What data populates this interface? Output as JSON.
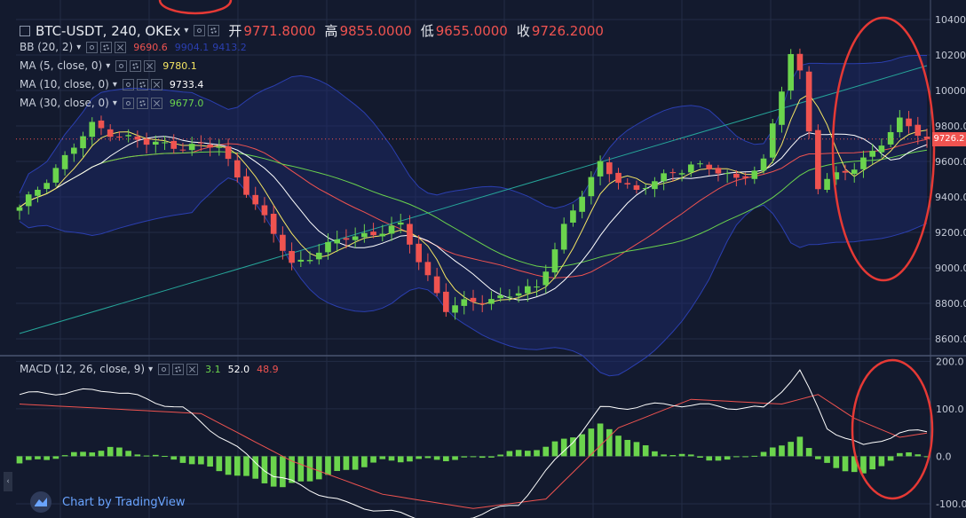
{
  "header": {
    "symbol": "BTC-USDT, 240, OKEx",
    "open_label": "开",
    "open_value": "9771.8000",
    "high_label": "高",
    "high_value": "9855.0000",
    "low_label": "低",
    "low_value": "9655.0000",
    "close_label": "收",
    "close_value": "9726.2000"
  },
  "indicators": [
    {
      "label": "BB (20, 2)",
      "values": [
        "9690.6",
        "9904.1",
        "9413.2"
      ],
      "colors": [
        "#ef5350",
        "#2b3fb0",
        "#2b3fb0"
      ]
    },
    {
      "label": "MA (5, close, 0)",
      "values": [
        "9780.1"
      ],
      "colors": [
        "#f5e663"
      ]
    },
    {
      "label": "MA (10, close, 0)",
      "values": [
        "9733.4"
      ],
      "colors": [
        "#ffffff"
      ]
    },
    {
      "label": "MA (30, close, 0)",
      "values": [
        "9677.0"
      ],
      "colors": [
        "#6bd44d"
      ]
    }
  ],
  "macd_legend": {
    "label": "MACD (12, 26, close, 9)",
    "values": [
      "3.1",
      "52.0",
      "48.9"
    ],
    "colors": [
      "#6bd44d",
      "#ffffff",
      "#ef5350"
    ]
  },
  "price_tag": "9726.2",
  "attribution": "Chart by TradingView",
  "colors": {
    "bg": "#131a2e",
    "up": "#6bd44d",
    "down": "#ef5350",
    "bb_fill": "#1c2a6e",
    "trend": "#26a69a",
    "annotation": "#e53935"
  },
  "chart_data": [
    {
      "type": "candlestick",
      "title": "BTC-USDT, 240, OKEx",
      "y_ticks": [
        "10400.0",
        "10200.0",
        "10000.0",
        "9800.0",
        "9600.0",
        "9400.0",
        "9200.0",
        "9000.0",
        "8800.0",
        "8600.0"
      ],
      "ylim": [
        8510,
        10440
      ],
      "grid": true,
      "bars": 100,
      "last_close": 9726.2,
      "key_prices": [
        {
          "bar": 0,
          "price": 9330
        },
        {
          "bar": 8,
          "price": 9800
        },
        {
          "bar": 14,
          "price": 9700
        },
        {
          "bar": 22,
          "price": 9680
        },
        {
          "bar": 25,
          "price": 9440
        },
        {
          "bar": 30,
          "price": 9020
        },
        {
          "bar": 36,
          "price": 9170
        },
        {
          "bar": 42,
          "price": 9230
        },
        {
          "bar": 47,
          "price": 8770
        },
        {
          "bar": 53,
          "price": 8840
        },
        {
          "bar": 57,
          "price": 8880
        },
        {
          "bar": 60,
          "price": 9240
        },
        {
          "bar": 64,
          "price": 9580
        },
        {
          "bar": 68,
          "price": 9430
        },
        {
          "bar": 74,
          "price": 9590
        },
        {
          "bar": 79,
          "price": 9500
        },
        {
          "bar": 82,
          "price": 9600
        },
        {
          "bar": 85,
          "price": 10200
        },
        {
          "bar": 86,
          "price": 10100
        },
        {
          "bar": 88,
          "price": 9470
        },
        {
          "bar": 92,
          "price": 9560
        },
        {
          "bar": 97,
          "price": 9820
        },
        {
          "bar": 100,
          "price": 9726
        }
      ],
      "series": [
        {
          "name": "BB (20, 2)"
        },
        {
          "name": "MA (5, close, 0)"
        },
        {
          "name": "MA (10, close, 0)"
        },
        {
          "name": "MA (30, close, 0)"
        }
      ],
      "trendline": {
        "from": {
          "bar": 0,
          "price": 8630
        },
        "to": {
          "bar": 100,
          "price": 10140
        }
      }
    },
    {
      "type": "bar",
      "title": "MACD (12, 26, close, 9)",
      "y_ticks": [
        "200.0",
        "100.0",
        "0.0",
        "-100.0"
      ],
      "ylim": [
        -130,
        210
      ],
      "key_histogram": [
        {
          "bar": 0,
          "value": -15
        },
        {
          "bar": 10,
          "value": 18
        },
        {
          "bar": 18,
          "value": -10
        },
        {
          "bar": 29,
          "value": -65
        },
        {
          "bar": 40,
          "value": -10
        },
        {
          "bar": 50,
          "value": -5
        },
        {
          "bar": 58,
          "value": 20
        },
        {
          "bar": 64,
          "value": 65
        },
        {
          "bar": 70,
          "value": 10
        },
        {
          "bar": 78,
          "value": -10
        },
        {
          "bar": 84,
          "value": 20
        },
        {
          "bar": 86,
          "value": 45
        },
        {
          "bar": 88,
          "value": -10
        },
        {
          "bar": 93,
          "value": -40
        },
        {
          "bar": 97,
          "value": 5
        },
        {
          "bar": 100,
          "value": 3
        }
      ],
      "key_macd": [
        {
          "bar": 0,
          "value": 130
        },
        {
          "bar": 10,
          "value": 140
        },
        {
          "bar": 18,
          "value": 100
        },
        {
          "bar": 28,
          "value": -40
        },
        {
          "bar": 36,
          "value": -100
        },
        {
          "bar": 47,
          "value": -140
        },
        {
          "bar": 55,
          "value": -100
        },
        {
          "bar": 64,
          "value": 100
        },
        {
          "bar": 72,
          "value": 110
        },
        {
          "bar": 82,
          "value": 100
        },
        {
          "bar": 86,
          "value": 180
        },
        {
          "bar": 89,
          "value": 60
        },
        {
          "bar": 93,
          "value": 20
        },
        {
          "bar": 97,
          "value": 50
        },
        {
          "bar": 100,
          "value": 52
        }
      ],
      "key_signal": [
        {
          "bar": 0,
          "value": 110
        },
        {
          "bar": 10,
          "value": 100
        },
        {
          "bar": 20,
          "value": 90
        },
        {
          "bar": 30,
          "value": -10
        },
        {
          "bar": 40,
          "value": -80
        },
        {
          "bar": 50,
          "value": -110
        },
        {
          "bar": 58,
          "value": -90
        },
        {
          "bar": 66,
          "value": 60
        },
        {
          "bar": 74,
          "value": 120
        },
        {
          "bar": 84,
          "value": 110
        },
        {
          "bar": 88,
          "value": 130
        },
        {
          "bar": 92,
          "value": 80
        },
        {
          "bar": 97,
          "value": 40
        },
        {
          "bar": 100,
          "value": 49
        }
      ]
    }
  ]
}
